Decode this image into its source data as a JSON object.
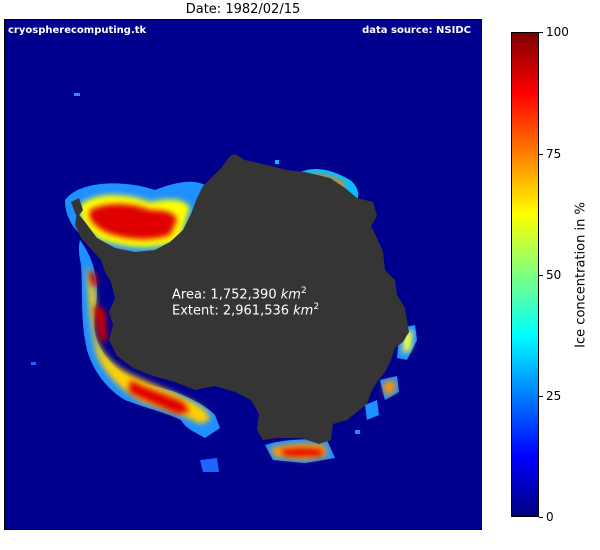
{
  "title": "Date: 1982/02/15",
  "map": {
    "credit_left": "cryospherecomputing.tk",
    "credit_right": "data source: NSIDC",
    "stats": {
      "area_label": "Area: 1,752,390",
      "extent_label": "Extent: 2,961,536",
      "unit": "km",
      "unit_exponent": "2"
    },
    "colors": {
      "ocean": "#00008f",
      "land": "#353535",
      "text": "#ffffff"
    }
  },
  "colorbar": {
    "label": "Ice concentration in %",
    "min": 0,
    "max": 100,
    "ticks": [
      "0",
      "25",
      "50",
      "75",
      "100"
    ],
    "colormap": "jet",
    "colormap_stops": [
      "#00007f",
      "#0000ff",
      "#007fff",
      "#00ffff",
      "#7fff7f",
      "#ffff00",
      "#ff7f00",
      "#ff0000",
      "#7f0000"
    ]
  }
}
